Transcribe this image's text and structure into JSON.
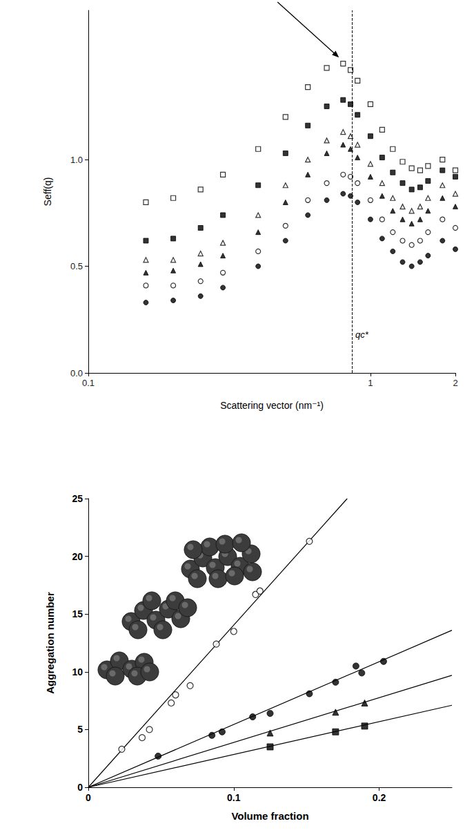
{
  "chart_data": [
    {
      "type": "scatter",
      "x_label": "Scattering vector (nm⁻¹)",
      "y_label": "Seff(q)",
      "log": "x",
      "grid": false,
      "xlim": [
        0.1,
        2
      ],
      "xticks": [
        0.1,
        1,
        2
      ],
      "ylim": [
        0,
        1.7
      ],
      "yticks": [
        {
          "value": 0,
          "label": "0.0"
        },
        {
          "value": 0.5,
          "label": "0.5"
        },
        {
          "value": 1.0,
          "label": "1.0"
        }
      ],
      "x": [
        0.16,
        0.2,
        0.25,
        0.3,
        0.4,
        0.5,
        0.6,
        0.7,
        0.8,
        0.85,
        0.9,
        1.0,
        1.1,
        1.2,
        1.3,
        1.4,
        1.5,
        1.6,
        1.8,
        2.0
      ],
      "series": [
        {
          "marker": "open_square",
          "color": "#000000",
          "values": [
            0.8,
            0.82,
            0.86,
            0.93,
            1.05,
            1.2,
            1.34,
            1.43,
            1.45,
            1.42,
            1.37,
            1.26,
            1.14,
            1.05,
            0.99,
            0.96,
            0.95,
            0.97,
            1.0,
            0.95
          ]
        },
        {
          "marker": "filled_square",
          "color": "#000000",
          "values": [
            0.62,
            0.63,
            0.68,
            0.74,
            0.88,
            1.03,
            1.16,
            1.25,
            1.28,
            1.26,
            1.21,
            1.11,
            1.01,
            0.94,
            0.89,
            0.86,
            0.87,
            0.9,
            0.95,
            0.92
          ]
        },
        {
          "marker": "open_triangle",
          "color": "#000000",
          "values": [
            0.53,
            0.53,
            0.56,
            0.61,
            0.74,
            0.88,
            1.0,
            1.09,
            1.13,
            1.11,
            1.07,
            0.98,
            0.89,
            0.82,
            0.78,
            0.76,
            0.78,
            0.82,
            0.88,
            0.84
          ]
        },
        {
          "marker": "filled_triangle",
          "color": "#000000",
          "values": [
            0.47,
            0.48,
            0.51,
            0.55,
            0.66,
            0.8,
            0.93,
            1.03,
            1.07,
            1.05,
            1.01,
            0.92,
            0.83,
            0.76,
            0.72,
            0.7,
            0.72,
            0.76,
            0.82,
            0.78
          ]
        },
        {
          "marker": "open_circle",
          "color": "#000000",
          "values": [
            0.41,
            0.41,
            0.43,
            0.47,
            0.57,
            0.69,
            0.81,
            0.89,
            0.93,
            0.92,
            0.89,
            0.81,
            0.72,
            0.66,
            0.62,
            0.6,
            0.62,
            0.66,
            0.72,
            0.68
          ]
        },
        {
          "marker": "filled_circle",
          "color": "#000000",
          "values": [
            0.33,
            0.34,
            0.36,
            0.4,
            0.5,
            0.62,
            0.74,
            0.81,
            0.84,
            0.83,
            0.8,
            0.72,
            0.63,
            0.57,
            0.52,
            0.5,
            0.52,
            0.55,
            0.62,
            0.58
          ]
        }
      ],
      "annotations": [
        {
          "text": "qc*",
          "x": 0.86,
          "line_style": "dashed"
        }
      ]
    },
    {
      "type": "scatter",
      "x_label": "Volume fraction",
      "y_label": "Aggregation number",
      "grid": false,
      "xlim": [
        0,
        0.25
      ],
      "xticks": [
        0,
        0.1,
        0.2
      ],
      "ylim": [
        0,
        25
      ],
      "yticks": [
        0,
        5,
        10,
        15,
        20,
        25
      ],
      "series": [
        {
          "marker": "open_circle",
          "color": "#000000",
          "x": [
            0.023,
            0.037,
            0.042,
            0.057,
            0.06,
            0.07,
            0.088,
            0.1,
            0.115,
            0.118,
            0.152
          ],
          "values": [
            3.3,
            4.3,
            5.0,
            7.3,
            8.0,
            8.8,
            12.4,
            13.5,
            16.7,
            17.0,
            21.3
          ],
          "fit": {
            "x": [
              0,
              0.178
            ],
            "values": [
              0,
              25
            ]
          }
        },
        {
          "marker": "filled_circle",
          "color": "#000000",
          "x": [
            0.048,
            0.085,
            0.092,
            0.113,
            0.125,
            0.152,
            0.17,
            0.184,
            0.188,
            0.203
          ],
          "values": [
            2.7,
            4.5,
            4.8,
            6.1,
            6.4,
            8.1,
            9.1,
            10.5,
            9.9,
            10.9
          ],
          "fit": {
            "x": [
              0,
              0.25
            ],
            "values": [
              0,
              13.6
            ]
          }
        },
        {
          "marker": "filled_triangle",
          "color": "#000000",
          "x": [
            0.125,
            0.17,
            0.19
          ],
          "values": [
            4.7,
            6.5,
            7.3
          ],
          "fit": {
            "x": [
              0,
              0.25
            ],
            "values": [
              0,
              9.7
            ]
          }
        },
        {
          "marker": "filled_square",
          "color": "#000000",
          "x": [
            0.125,
            0.17,
            0.19
          ],
          "values": [
            3.5,
            4.8,
            5.3
          ],
          "fit": {
            "x": [
              0,
              0.25
            ],
            "values": [
              0,
              7.1
            ]
          }
        }
      ]
    }
  ]
}
